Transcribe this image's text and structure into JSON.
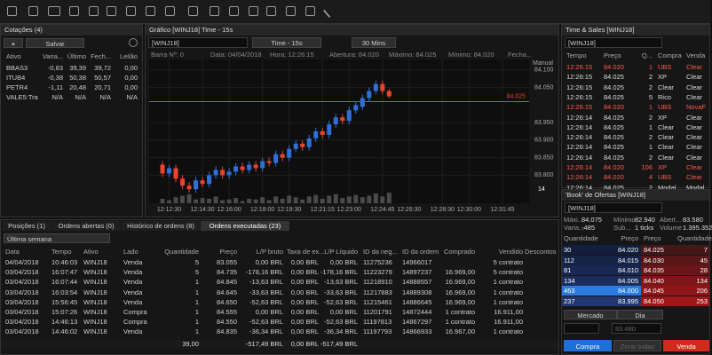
{
  "quotes": {
    "title": "Cotações (4)",
    "save": "Salvar",
    "columns": [
      "Ativo",
      "Varia...",
      "Último",
      "Fech...",
      "Leilão"
    ],
    "rows": [
      [
        "BBAS3",
        "-0,83",
        "39,39",
        "39,72",
        "0,00"
      ],
      [
        "ITUB4",
        "-0,38",
        "50,38",
        "50,57",
        "0,00"
      ],
      [
        "PETR4",
        "-1,11",
        "20,48",
        "20,71",
        "0,00"
      ],
      [
        "VALE5:Tra",
        "N/A",
        "N/A",
        "N/A",
        "N/A"
      ]
    ]
  },
  "chart_panel": {
    "title": "Gráfico [WINJ18] Time - 15s",
    "symbol": "[WINJ18]",
    "timeframe": "Time - 15s",
    "period": "30 Mins",
    "info": [
      "Barra Nº: 0",
      "Data: 04/04/2018",
      "Hora: 12:26:15",
      "Abertura: 84.020",
      "Máximo: 84.025",
      "Mínimo: 84.020",
      "Fecha..."
    ],
    "scale_mode": "Manual",
    "volume_label": "14"
  },
  "chart_data": {
    "type": "candlestick",
    "open": [
      83830,
      83805,
      83820,
      83790,
      83770,
      83760,
      83785,
      83775,
      83800,
      83815,
      83800,
      83810,
      83825,
      83815,
      83830,
      83820,
      83840,
      83835,
      83860,
      83850,
      83875,
      83890,
      83880,
      83905,
      83925,
      83915,
      83945,
      83965,
      83955,
      83985,
      83995,
      84020,
      84040,
      84060,
      84040
    ],
    "high": [
      83840,
      83830,
      83830,
      83800,
      83780,
      83795,
      83795,
      83810,
      83825,
      83825,
      83820,
      83835,
      83835,
      83840,
      83840,
      83850,
      83850,
      83870,
      83870,
      83885,
      83900,
      83900,
      83915,
      83935,
      83935,
      83955,
      83975,
      83975,
      83995,
      84010,
      84030,
      84050,
      84070,
      84070,
      84045
    ],
    "low": [
      83795,
      83795,
      83780,
      83760,
      83750,
      83750,
      83765,
      83765,
      83790,
      83790,
      83790,
      83800,
      83805,
      83805,
      83810,
      83810,
      83825,
      83825,
      83840,
      83840,
      83865,
      83870,
      83870,
      83895,
      83905,
      83905,
      83935,
      83945,
      83945,
      83975,
      83985,
      84010,
      84030,
      84030,
      84020
    ],
    "close": [
      83805,
      83820,
      83790,
      83770,
      83760,
      83785,
      83775,
      83800,
      83815,
      83800,
      83810,
      83825,
      83815,
      83830,
      83820,
      83840,
      83835,
      83860,
      83850,
      83875,
      83890,
      83880,
      83905,
      83925,
      83915,
      83945,
      83965,
      83955,
      83985,
      84000,
      84020,
      84040,
      84060,
      84040,
      84025
    ],
    "volume": [
      6,
      4,
      8,
      10,
      12,
      5,
      7,
      6,
      9,
      4,
      5,
      7,
      3,
      6,
      5,
      8,
      4,
      9,
      6,
      10,
      8,
      5,
      9,
      11,
      6,
      10,
      12,
      7,
      9,
      11,
      8,
      10,
      13,
      9,
      14
    ],
    "up_color": "#2f6fd8",
    "down_color": "#e8452c",
    "volume_color": "#4a4a4a",
    "xlim": [
      -2,
      55
    ],
    "ylim": [
      83720,
      84130
    ],
    "y2lim": [
      0,
      40
    ],
    "xticks": [
      {
        "value": 1,
        "label": "12:12:30"
      },
      {
        "value": 6,
        "label": "12:14:30"
      },
      {
        "value": 10,
        "label": "12:16:00"
      },
      {
        "value": 15,
        "label": "12:18:00"
      },
      {
        "value": 19,
        "label": "12:19:30"
      },
      {
        "value": 24,
        "label": "12:21:15"
      },
      {
        "value": 28,
        "label": "12:23:00"
      },
      {
        "value": 33,
        "label": "12:24:45"
      },
      {
        "value": 37,
        "label": "12:26:30"
      },
      {
        "value": 42,
        "label": "12:28:30"
      },
      {
        "value": 46,
        "label": "12:30:00"
      },
      {
        "value": 51,
        "label": "12:31:45"
      }
    ],
    "yticks": [
      {
        "value": 84100,
        "label": "84.100"
      },
      {
        "value": 84050,
        "label": "84.050"
      },
      {
        "value": 83950,
        "label": "83.950"
      },
      {
        "value": 83900,
        "label": "83.900"
      },
      {
        "value": 83850,
        "label": "83.850"
      },
      {
        "value": 83800,
        "label": "83.800"
      }
    ],
    "last": {
      "value": 84025,
      "label": "84.025"
    },
    "last_color": "#e8452c",
    "level_color": "#5a8a2a",
    "grid": true
  },
  "times_sales": {
    "title": "Time & Sales [WINJ18]",
    "symbol": "[WINJ18]",
    "columns": [
      "Tempo",
      "Preço",
      "Q...",
      "Compra",
      "Venda"
    ],
    "rows": [
      [
        "12:26:15",
        "84.020",
        "1",
        "UBS",
        "Clear"
      ],
      [
        "12:26:15",
        "84.025",
        "2",
        "XP",
        "Clear"
      ],
      [
        "12:26:15",
        "84.025",
        "2",
        "Clear",
        "Clear"
      ],
      [
        "12:26:15",
        "84.025",
        "5",
        "Rico",
        "Clear"
      ],
      [
        "12:26:15",
        "84.020",
        "1",
        "UBS",
        "NovaF"
      ],
      [
        "12:26:14",
        "84.025",
        "2",
        "XP",
        "Clear"
      ],
      [
        "12:26:14",
        "84.025",
        "1",
        "Clear",
        "Clear"
      ],
      [
        "12:26:14",
        "84.025",
        "2",
        "Clear",
        "Clear"
      ],
      [
        "12:26:14",
        "84.025",
        "1",
        "Clear",
        "Clear"
      ],
      [
        "12:26:14",
        "84.025",
        "2",
        "Clear",
        "Clear"
      ],
      [
        "12:26:14",
        "84.020",
        "106",
        "XP",
        "Clear"
      ],
      [
        "12:26:14",
        "84.020",
        "4",
        "UBS",
        "Clear"
      ],
      [
        "12:26:14",
        "84.025",
        "2",
        "Modal",
        "Modal"
      ]
    ],
    "row_colors": [
      "#ff5a4a",
      "#dddddd",
      "#dddddd",
      "#dddddd",
      "#ff5a4a",
      "#dddddd",
      "#dddddd",
      "#dddddd",
      "#dddddd",
      "#dddddd",
      "#ff5a4a",
      "#ff5a4a",
      "#dddddd"
    ]
  },
  "book": {
    "title": "'Book' de Ofertas [WINJ18]",
    "symbol": "[WINJ18]",
    "stats": [
      [
        "Máxi...",
        "84.075",
        "Mínimo",
        "82.940",
        "Abert...",
        "83.580"
      ],
      [
        "Varia...",
        "-485",
        "Sub...",
        "1 ticks",
        "Volume",
        "1.395.352"
      ]
    ],
    "columns": [
      "Quantidade",
      "Preço",
      "Preço",
      "Quantidade"
    ],
    "rows": [
      [
        "30",
        "84.020",
        "84.025",
        "7"
      ],
      [
        "112",
        "84.015",
        "84.030",
        "45"
      ],
      [
        "81",
        "84.010",
        "84.035",
        "28"
      ],
      [
        "134",
        "84.005",
        "84.040",
        "134"
      ],
      [
        "463",
        "84.000",
        "84.045",
        "206"
      ],
      [
        "237",
        "83.995",
        "84.050",
        "253"
      ]
    ],
    "order_type": "Mercado",
    "validity": "Dia",
    "price_placeholder": "83.480",
    "buy": "Compra",
    "zero": "Zerar todas",
    "sell": "Venda"
  },
  "orders": {
    "tabs": [
      "Posições (1)",
      "Ordens abertas (0)",
      "Histórico de ordens (8)",
      "Ordens executadas (23)"
    ],
    "filter": "Última semana",
    "columns": [
      "Data",
      "Tempo",
      "Ativo",
      "Lado",
      "Quantidade",
      "Preço",
      "L/P bruto",
      "Taxa de ex...",
      "L/P Líquido",
      "ID da neg...",
      "ID da ordem",
      "Comprado",
      "Vendido",
      "Descontos"
    ],
    "rows": [
      [
        "04/04/2018",
        "10:46:03",
        "WINJ18",
        "Venda",
        "5",
        "83.055",
        "0,00 BRL",
        "0,00 BRL",
        "0,00 BRL",
        "11275236",
        "14966017",
        null,
        "5 contrato",
        null
      ],
      [
        "03/04/2018",
        "16:07:47",
        "WINJ18",
        "Venda",
        "5",
        "84.735",
        "-178,16 BRL",
        "0,00 BRL",
        "-178,16 BRL",
        "11223279",
        "14897237",
        "16.969,00",
        "5 contrato",
        null
      ],
      [
        "03/04/2018",
        "16:07:44",
        "WINJ18",
        "Venda",
        "1",
        "84.845",
        "-13,63 BRL",
        "0,00 BRL",
        "-13,63 BRL",
        "11218910",
        "14888557",
        "16.969,00",
        "1 contrato",
        null
      ],
      [
        "03/04/2018",
        "16:03:54",
        "WINJ18",
        "Venda",
        "1",
        "84.645",
        "-33,63 BRL",
        "0,00 BRL",
        "-33,63 BRL",
        "11217883",
        "14889308",
        "16.969,00",
        "1 contrato",
        null
      ],
      [
        "03/04/2018",
        "15:56:45",
        "WINJ18",
        "Venda",
        "1",
        "84.650",
        "-52,63 BRL",
        "0,00 BRL",
        "-52,63 BRL",
        "11215461",
        "14886645",
        "16.969,00",
        "1 contrato",
        null
      ],
      [
        "03/04/2018",
        "15:07:26",
        "WINJ18",
        "Compra",
        "1",
        "84.555",
        "0,00 BRL",
        "0,00 BRL",
        "0,00 BRL",
        "11201791",
        "14872444",
        "1 contrato",
        "16.911,00",
        null
      ],
      [
        "03/04/2018",
        "14:46:13",
        "WINJ18",
        "Compra",
        "1",
        "84.550",
        "-52,63 BRL",
        "0,00 BRL",
        "-52,63 BRL",
        "11197813",
        "14867297",
        "1 contrato",
        "16.911,00",
        null
      ],
      [
        "03/04/2018",
        "14:46:02",
        "WINJ18",
        "Venda",
        "1",
        "84.835",
        "-36,34 BRL",
        "0,00 BRL",
        "-36,34 BRL",
        "11197793",
        "14866933",
        "16.967,00",
        "1 contrato",
        null
      ]
    ],
    "totals": [
      null,
      null,
      null,
      null,
      "39,00",
      null,
      "-517,49 BRL",
      "0,00 BRL",
      "-517,49 BRL",
      null,
      null,
      null,
      null,
      null
    ]
  }
}
